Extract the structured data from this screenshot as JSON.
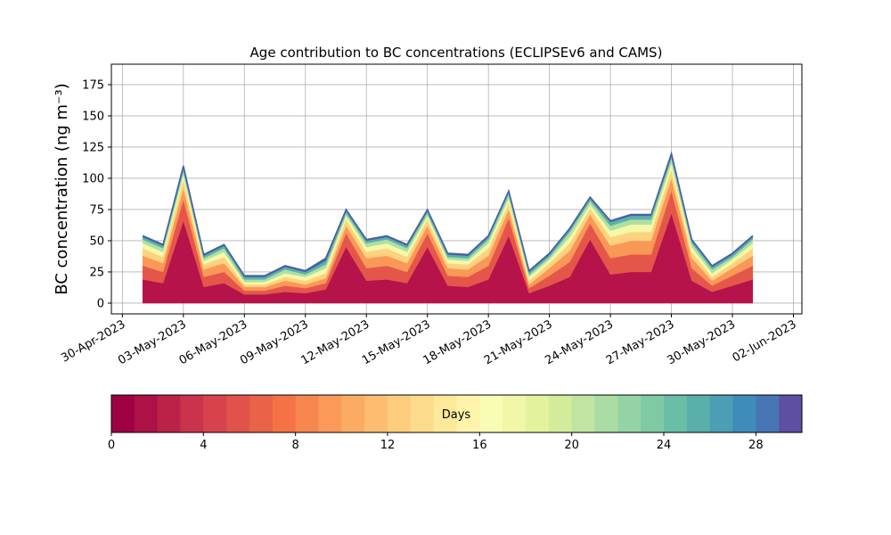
{
  "chart_data": {
    "type": "stacked_area",
    "title": "Age contribution to BC concentrations (ECLIPSEv6 and CAMS)",
    "y_label": "BC concentration (ng m⁻³)",
    "x": [
      "2023-05-01",
      "2023-05-02",
      "2023-05-03",
      "2023-05-04",
      "2023-05-05",
      "2023-05-06",
      "2023-05-07",
      "2023-05-08",
      "2023-05-09",
      "2023-05-10",
      "2023-05-11",
      "2023-05-12",
      "2023-05-13",
      "2023-05-14",
      "2023-05-15",
      "2023-05-16",
      "2023-05-17",
      "2023-05-18",
      "2023-05-19",
      "2023-05-20",
      "2023-05-21",
      "2023-05-22",
      "2023-05-23",
      "2023-05-24",
      "2023-05-25",
      "2023-05-26",
      "2023-05-27",
      "2023-05-28",
      "2023-05-29",
      "2023-05-30",
      "2023-05-31"
    ],
    "series": [
      {
        "color": "#b5134a",
        "values": [
          19,
          16,
          66,
          13,
          16,
          7,
          7,
          9,
          8,
          11,
          45,
          18,
          19,
          16,
          45,
          14,
          13,
          19,
          54,
          8,
          14,
          21,
          51,
          23,
          25,
          25,
          72,
          18,
          9,
          14,
          19
        ]
      },
      {
        "color": "#e4564a",
        "values": [
          11,
          9,
          17,
          8,
          9,
          3,
          3,
          5,
          4,
          5,
          11,
          10,
          11,
          9,
          11,
          8,
          8,
          11,
          14,
          4,
          8,
          12,
          13,
          13,
          14,
          14,
          18,
          10,
          5,
          8,
          11
        ]
      },
      {
        "color": "#fa9857",
        "values": [
          8,
          7,
          9,
          6,
          7,
          3,
          3,
          4,
          3,
          4,
          6,
          8,
          8,
          7,
          6,
          6,
          6,
          8,
          7,
          3,
          6,
          9,
          7,
          10,
          11,
          11,
          10,
          8,
          4,
          6,
          8
        ]
      },
      {
        "color": "#fed27f",
        "values": [
          6,
          5,
          7,
          4,
          5,
          2,
          2,
          3,
          3,
          4,
          5,
          5,
          6,
          5,
          5,
          4,
          4,
          6,
          5,
          3,
          4,
          6,
          5,
          7,
          7,
          7,
          7,
          5,
          3,
          4,
          6
        ]
      },
      {
        "color": "#f2f9a8",
        "values": [
          4,
          4,
          4,
          3,
          4,
          2,
          2,
          3,
          3,
          4,
          3,
          4,
          4,
          4,
          3,
          3,
          3,
          4,
          4,
          3,
          3,
          5,
          3,
          5,
          6,
          6,
          5,
          4,
          3,
          3,
          4
        ]
      },
      {
        "color": "#b0dfa2",
        "values": [
          3,
          3,
          3,
          2,
          3,
          2,
          2,
          3,
          2,
          3,
          2,
          3,
          3,
          3,
          2,
          2,
          2,
          3,
          3,
          2,
          2,
          4,
          3,
          4,
          4,
          4,
          4,
          3,
          3,
          2,
          3
        ]
      },
      {
        "color": "#57b2a8",
        "values": [
          2,
          2,
          2,
          2,
          2,
          2,
          2,
          2,
          2,
          3,
          2,
          2,
          2,
          2,
          2,
          2,
          2,
          2,
          2,
          2,
          2,
          2,
          2,
          3,
          3,
          3,
          2,
          2,
          2,
          2,
          2
        ]
      },
      {
        "color": "#4a5ea8",
        "values": [
          1,
          1,
          2,
          1,
          1,
          1,
          1,
          1,
          1,
          2,
          1,
          1,
          1,
          1,
          1,
          1,
          1,
          1,
          1,
          1,
          1,
          1,
          1,
          1,
          1,
          1,
          2,
          1,
          1,
          1,
          1
        ]
      }
    ],
    "xlim": [
      "2023-04-29T11:00",
      "2023-06-02T10:00"
    ],
    "xticks": [
      {
        "value": "2023-04-30",
        "label": "30-Apr-2023"
      },
      {
        "value": "2023-05-03",
        "label": "03-May-2023"
      },
      {
        "value": "2023-05-06",
        "label": "06-May-2023"
      },
      {
        "value": "2023-05-09",
        "label": "09-May-2023"
      },
      {
        "value": "2023-05-12",
        "label": "12-May-2023"
      },
      {
        "value": "2023-05-15",
        "label": "15-May-2023"
      },
      {
        "value": "2023-05-18",
        "label": "18-May-2023"
      },
      {
        "value": "2023-05-21",
        "label": "21-May-2023"
      },
      {
        "value": "2023-05-24",
        "label": "24-May-2023"
      },
      {
        "value": "2023-05-27",
        "label": "27-May-2023"
      },
      {
        "value": "2023-05-30",
        "label": "30-May-2023"
      },
      {
        "value": "2023-06-02",
        "label": "02-Jun-2023"
      }
    ],
    "ylim": [
      -8.6,
      191.4
    ],
    "yticks": [
      0,
      25,
      50,
      75,
      100,
      125,
      150,
      175
    ],
    "grid": true,
    "colorbar": {
      "label": "Days",
      "lim": [
        0,
        30
      ],
      "ticks": [
        0,
        4,
        8,
        12,
        16,
        20,
        24,
        28
      ],
      "colors": [
        "#9e0142",
        "#ad1145",
        "#bc2148",
        "#cb334c",
        "#d7424d",
        "#e1524a",
        "#ea6247",
        "#f47245",
        "#f7864f",
        "#fa9958",
        "#fcab63",
        "#fdbd70",
        "#fdcd7d",
        "#fedb8a",
        "#fee899",
        "#fff4aa",
        "#f9fcb4",
        "#f0f8a8",
        "#e3f39d",
        "#d2ec9b",
        "#bfe5a0",
        "#aadca4",
        "#94d3a4",
        "#7ecaa5",
        "#6bbea6",
        "#5aafab",
        "#4b9eb3",
        "#3f8cba",
        "#4677b4",
        "#5e4fa2"
      ]
    }
  }
}
